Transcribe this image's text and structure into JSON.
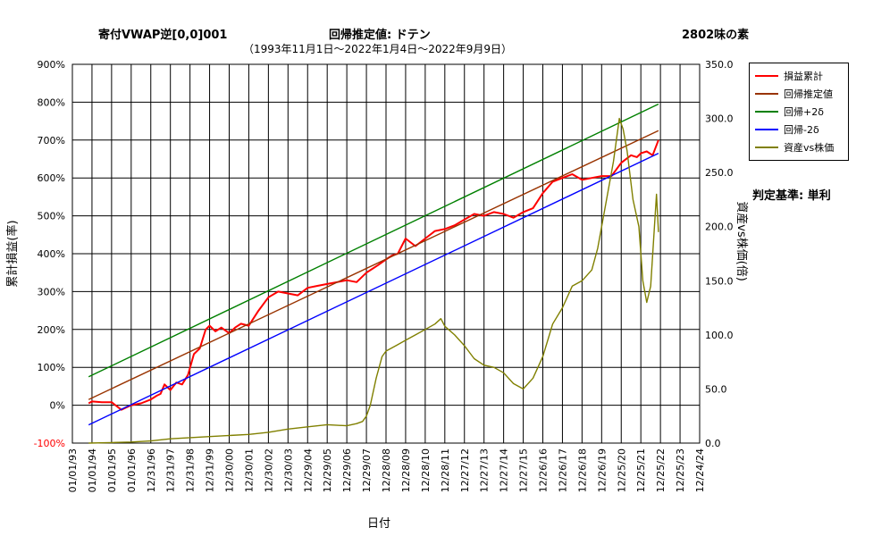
{
  "header": {
    "left_title": "寄付VWAP逆[0,0]001",
    "center_title": "回帰推定値: ドテン",
    "right_title": "2802味の素",
    "subtitle": "（1993年11月1日～2022年1月4日～2022年9月9日）",
    "criterion": "判定基準: 単利"
  },
  "chart_data": {
    "type": "line",
    "xlabel": "日付",
    "ylabel_left": "累計損益(率)",
    "ylabel_right": "資産vs株価(倍)",
    "y_left_range": [
      -100,
      900
    ],
    "y_left_ticks": [
      "-100%",
      "0%",
      "100%",
      "200%",
      "300%",
      "400%",
      "500%",
      "600%",
      "700%",
      "800%",
      "900%"
    ],
    "y_right_range": [
      0,
      350
    ],
    "y_right_ticks": [
      "0.0",
      "50.0",
      "100.0",
      "150.0",
      "200.0",
      "250.0",
      "300.0",
      "350.0"
    ],
    "x_ticks": [
      "01/01/93",
      "01/01/94",
      "01/01/95",
      "01/01/96",
      "12/31/96",
      "12/31/97",
      "12/31/98",
      "12/31/99",
      "12/30/00",
      "12/30/01",
      "12/30/02",
      "12/30/03",
      "12/29/04",
      "12/29/05",
      "12/29/06",
      "12/29/07",
      "12/28/08",
      "12/28/09",
      "12/28/10",
      "12/28/11",
      "12/27/12",
      "12/27/13",
      "12/27/14",
      "12/27/15",
      "12/26/16",
      "12/26/17",
      "12/26/18",
      "12/26/19",
      "12/25/20",
      "12/25/21",
      "12/25/22",
      "12/25/23",
      "12/24/24"
    ],
    "grid": true,
    "legend_position": "right",
    "series": [
      {
        "name": "損益累計",
        "color": "#ff0000",
        "axis": "left",
        "x": [
          0.83,
          1.0,
          1.5,
          2.0,
          2.5,
          3.0,
          3.5,
          4.0,
          4.3,
          4.5,
          4.7,
          5.0,
          5.3,
          5.6,
          5.9,
          6.2,
          6.5,
          6.8,
          7.0,
          7.3,
          7.6,
          8.0,
          8.3,
          8.6,
          9.0,
          9.5,
          10.0,
          10.5,
          11.0,
          11.5,
          12.0,
          12.5,
          13.0,
          13.5,
          14.0,
          14.5,
          15.0,
          15.3,
          15.6,
          16.0,
          16.3,
          16.6,
          17.0,
          17.5,
          18.0,
          18.5,
          19.0,
          19.5,
          20.0,
          20.5,
          21.0,
          21.5,
          22.0,
          22.5,
          23.0,
          23.5,
          24.0,
          24.5,
          25.0,
          25.5,
          26.0,
          26.5,
          27.0,
          27.5,
          28.0,
          28.5,
          28.8,
          29.0,
          29.3,
          29.6,
          29.9
        ],
        "y": [
          5,
          10,
          8,
          8,
          -12,
          0,
          5,
          15,
          25,
          30,
          55,
          40,
          60,
          55,
          80,
          135,
          150,
          200,
          210,
          195,
          205,
          190,
          205,
          215,
          210,
          250,
          285,
          300,
          295,
          290,
          310,
          315,
          320,
          325,
          330,
          325,
          350,
          360,
          370,
          385,
          395,
          400,
          440,
          420,
          440,
          460,
          465,
          475,
          490,
          505,
          500,
          510,
          505,
          495,
          510,
          520,
          560,
          590,
          600,
          610,
          595,
          600,
          605,
          605,
          640,
          660,
          655,
          665,
          670,
          660,
          700
        ]
      },
      {
        "name": "回帰推定値",
        "color": "#993300",
        "axis": "left",
        "x": [
          0.83,
          29.9
        ],
        "y": [
          15,
          725
        ]
      },
      {
        "name": "回帰+2δ",
        "color": "#008000",
        "axis": "left",
        "x": [
          0.83,
          29.9
        ],
        "y": [
          75,
          795
        ]
      },
      {
        "name": "回帰-2δ",
        "color": "#0000ff",
        "axis": "left",
        "x": [
          0.83,
          29.9
        ],
        "y": [
          -52,
          665
        ]
      },
      {
        "name": "資産vs株価",
        "color": "#808000",
        "axis": "right",
        "x": [
          0.83,
          2.0,
          3.0,
          4.0,
          5.0,
          6.0,
          7.0,
          8.0,
          9.0,
          10.0,
          11.0,
          12.0,
          13.0,
          14.0,
          14.5,
          14.8,
          15.0,
          15.2,
          15.5,
          15.8,
          16.0,
          16.5,
          17.0,
          17.5,
          18.0,
          18.5,
          18.8,
          19.0,
          19.5,
          20.0,
          20.5,
          21.0,
          21.5,
          22.0,
          22.5,
          23.0,
          23.5,
          24.0,
          24.5,
          25.0,
          25.5,
          26.0,
          26.5,
          26.8,
          27.0,
          27.3,
          27.6,
          27.9,
          28.1,
          28.3,
          28.6,
          28.9,
          29.1,
          29.3,
          29.5,
          29.8,
          29.9
        ],
        "y": [
          0,
          0.5,
          1,
          2,
          4,
          5,
          6,
          7,
          8,
          10,
          13,
          15,
          17,
          16,
          18,
          20,
          25,
          35,
          60,
          80,
          85,
          90,
          95,
          100,
          105,
          110,
          115,
          108,
          100,
          90,
          78,
          72,
          70,
          65,
          55,
          50,
          60,
          80,
          110,
          125,
          145,
          150,
          160,
          180,
          200,
          230,
          260,
          300,
          290,
          270,
          225,
          200,
          150,
          130,
          145,
          230,
          195
        ]
      }
    ]
  }
}
